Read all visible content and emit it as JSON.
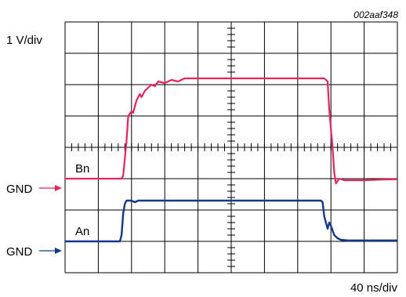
{
  "figure_id": "002aaf348",
  "vertical_scale": "1 V/div",
  "horizontal_scale": "40 ns/div",
  "colors": {
    "grid": "#000000",
    "trace_bn": "#e8245c",
    "trace_an": "#12388c",
    "background": "#ffffff"
  },
  "chart_data": {
    "type": "line",
    "title": "",
    "xlabel": "40 ns/div",
    "ylabel": "1 V/div",
    "grid": true,
    "xlim": [
      0,
      10
    ],
    "ylim": [
      0,
      8
    ],
    "x_unit": "div",
    "y_unit": "div",
    "series": [
      {
        "name": "Bn",
        "ground_label": "GND",
        "ground_level": 3.0,
        "points": [
          [
            0,
            3.0
          ],
          [
            1.7,
            3.0
          ],
          [
            1.75,
            3.1
          ],
          [
            1.85,
            4.2
          ],
          [
            1.9,
            5.0
          ],
          [
            2.0,
            5.15
          ],
          [
            2.05,
            5.1
          ],
          [
            2.1,
            5.3
          ],
          [
            2.15,
            5.5
          ],
          [
            2.25,
            5.7
          ],
          [
            2.3,
            5.6
          ],
          [
            2.4,
            5.8
          ],
          [
            2.5,
            5.9
          ],
          [
            2.6,
            6.0
          ],
          [
            2.7,
            5.95
          ],
          [
            2.8,
            6.1
          ],
          [
            3.0,
            6.05
          ],
          [
            3.2,
            6.15
          ],
          [
            3.4,
            6.1
          ],
          [
            3.6,
            6.2
          ],
          [
            4.0,
            6.2
          ],
          [
            6.0,
            6.2
          ],
          [
            7.8,
            6.2
          ],
          [
            7.9,
            6.1
          ],
          [
            7.95,
            5.2
          ],
          [
            8.05,
            4.0
          ],
          [
            8.1,
            3.2
          ],
          [
            8.15,
            2.85
          ],
          [
            8.25,
            3.0
          ],
          [
            8.4,
            2.95
          ],
          [
            9.0,
            2.95
          ],
          [
            9.5,
            2.97
          ],
          [
            10.0,
            2.98
          ]
        ]
      },
      {
        "name": "An",
        "ground_label": "GND",
        "ground_level": 1.0,
        "points": [
          [
            0,
            1.0
          ],
          [
            1.65,
            1.0
          ],
          [
            1.7,
            1.2
          ],
          [
            1.75,
            1.9
          ],
          [
            1.8,
            2.2
          ],
          [
            1.85,
            2.3
          ],
          [
            2.0,
            2.3
          ],
          [
            2.1,
            2.25
          ],
          [
            2.2,
            2.3
          ],
          [
            7.7,
            2.3
          ],
          [
            7.75,
            2.25
          ],
          [
            7.8,
            1.8
          ],
          [
            7.9,
            1.4
          ],
          [
            7.95,
            1.6
          ],
          [
            8.0,
            1.5
          ],
          [
            8.1,
            1.2
          ],
          [
            8.2,
            1.1
          ],
          [
            8.3,
            1.05
          ],
          [
            8.5,
            1.03
          ],
          [
            10.0,
            1.03
          ]
        ]
      }
    ]
  }
}
